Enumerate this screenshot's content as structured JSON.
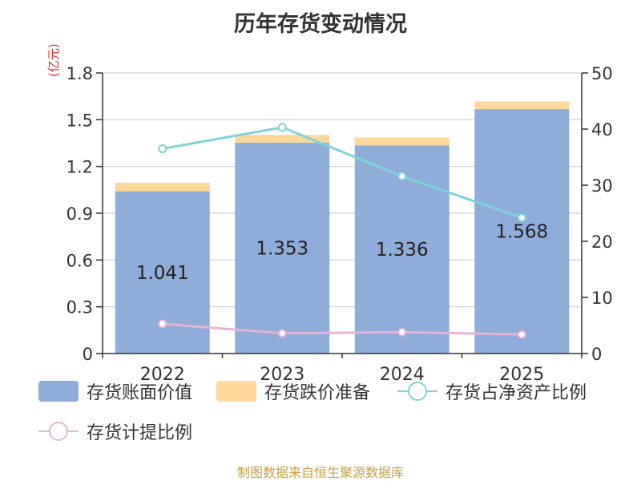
{
  "title": "历年存货变动情况",
  "source": "制图数据来自恒生聚源数据库",
  "chart_data": {
    "type": "bar",
    "categories": [
      "2022",
      "2023",
      "2024",
      "2025"
    ],
    "left_axis": {
      "unit": "(亿元)",
      "ylim": [
        0,
        1.8
      ],
      "ticks": [
        "0",
        "0.3",
        "0.6",
        "0.9",
        "1.2",
        "1.5",
        "1.8"
      ]
    },
    "right_axis": {
      "ylim": [
        0,
        50
      ],
      "ticks": [
        "0",
        "10",
        "20",
        "30",
        "40",
        "50"
      ]
    },
    "series": [
      {
        "name": "存货账面价值",
        "type": "bar",
        "stack": "s",
        "axis": "left",
        "color": "#8fadd9",
        "values": [
          1.041,
          1.353,
          1.336,
          1.568
        ],
        "labels": [
          "1.041",
          "1.353",
          "1.336",
          "1.568"
        ]
      },
      {
        "name": "存货跌价准备",
        "type": "bar",
        "stack": "s",
        "axis": "left",
        "color": "#fdd89a",
        "values": [
          0.055,
          0.05,
          0.05,
          0.05
        ]
      },
      {
        "name": "存货占净资产比例",
        "type": "line",
        "axis": "right",
        "color": "#7fd3d8",
        "values": [
          36.5,
          40.3,
          31.6,
          24.2
        ]
      },
      {
        "name": "存货计提比例",
        "type": "line",
        "axis": "right",
        "color": "#e6b3d9",
        "values": [
          5.3,
          3.6,
          3.8,
          3.4
        ]
      }
    ],
    "grid": true,
    "legend": "bottom"
  }
}
